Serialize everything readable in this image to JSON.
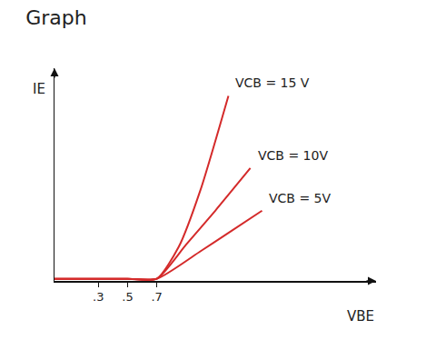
{
  "chart_data": {
    "type": "line",
    "title": "Graph",
    "x_label": "VBE",
    "y_label": "IE",
    "series": [
      {
        "name": "VCB = 15 V",
        "color": "#d42a2a",
        "x": [
          0,
          0.3,
          0.5,
          0.7,
          0.85,
          1.0,
          1.19
        ],
        "values": [
          0.1,
          0.1,
          0.1,
          0.1,
          1.6,
          4.3,
          8.7
        ]
      },
      {
        "name": "VCB = 10V",
        "color": "#d42a2a",
        "x": [
          0,
          0.3,
          0.5,
          0.7,
          0.9,
          1.1,
          1.34
        ],
        "values": [
          0.1,
          0.1,
          0.1,
          0.1,
          1.7,
          3.3,
          5.3
        ]
      },
      {
        "name": "VCB = 5V",
        "color": "#d42a2a",
        "x": [
          0,
          0.3,
          0.5,
          0.7,
          1.0,
          1.2,
          1.42
        ],
        "values": [
          0.1,
          0.1,
          0.1,
          0.1,
          1.4,
          2.3,
          3.3
        ]
      }
    ],
    "xlim": [
      0,
      2.2
    ],
    "ylim": [
      0,
      10
    ],
    "xticks": [
      {
        "value": 0.3,
        "label": ".3"
      },
      {
        "value": 0.5,
        "label": ".5"
      },
      {
        "value": 0.7,
        "label": ".7"
      }
    ],
    "yticks": [],
    "tick_labels": "x",
    "grid": false
  }
}
